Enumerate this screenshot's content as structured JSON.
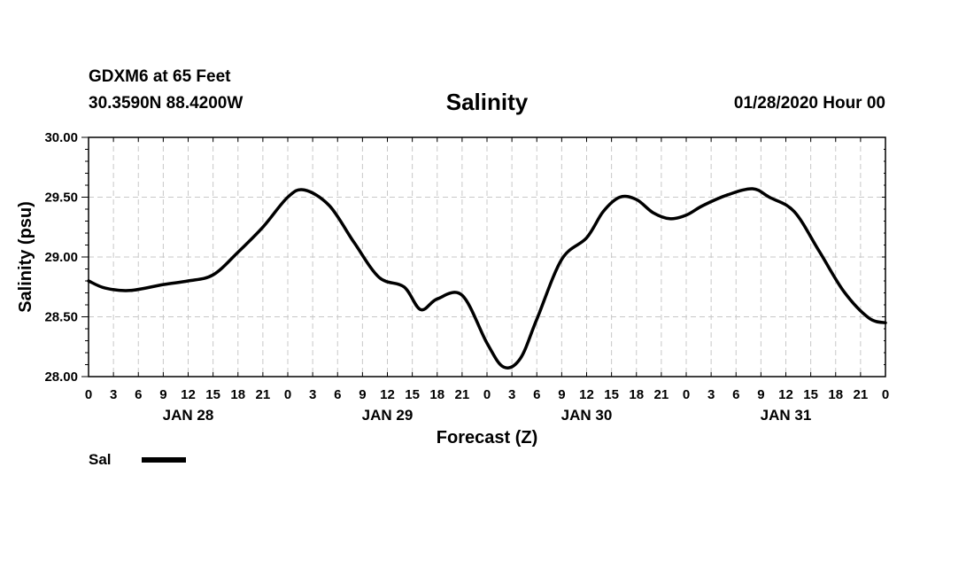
{
  "header": {
    "station": "GDXM6 at 65 Feet",
    "coords": "30.3590N 88.4200W",
    "title": "Salinity",
    "runtime": "01/28/2020 Hour 00"
  },
  "chart_data": {
    "type": "line",
    "title": "Salinity",
    "xlabel": "Forecast (Z)",
    "ylabel": "Salinity (psu)",
    "ylim": [
      28.0,
      30.0
    ],
    "yticks": [
      "28.00",
      "28.50",
      "29.00",
      "29.50",
      "30.00"
    ],
    "xlim_hours": [
      0,
      96
    ],
    "xtick_labels": [
      "0",
      "3",
      "6",
      "9",
      "12",
      "15",
      "18",
      "21",
      "0",
      "3",
      "6",
      "9",
      "12",
      "15",
      "18",
      "21",
      "0",
      "3",
      "6",
      "9",
      "12",
      "15",
      "18",
      "21",
      "0",
      "3",
      "6",
      "9",
      "12",
      "15",
      "18",
      "21",
      "0"
    ],
    "date_labels": [
      "JAN 28",
      "JAN 29",
      "JAN 30",
      "JAN 31"
    ],
    "grid": true,
    "legend_position": "bottom-left",
    "series": [
      {
        "name": "Sal",
        "color": "#000000",
        "x_hours": [
          0,
          2,
          5,
          9,
          12,
          15,
          18,
          21,
          24,
          26,
          29,
          32,
          35,
          38,
          40,
          42,
          45,
          48,
          50,
          52,
          54,
          57,
          60,
          62,
          64,
          66,
          68,
          70,
          72,
          74,
          77,
          80,
          82,
          85,
          88,
          91,
          94,
          96
        ],
        "values": [
          28.8,
          28.74,
          28.72,
          28.77,
          28.8,
          28.85,
          29.04,
          29.25,
          29.5,
          29.56,
          29.43,
          29.12,
          28.83,
          28.75,
          28.56,
          28.65,
          28.68,
          28.28,
          28.08,
          28.15,
          28.48,
          28.98,
          29.16,
          29.38,
          29.5,
          29.48,
          29.37,
          29.32,
          29.35,
          29.43,
          29.52,
          29.57,
          29.5,
          29.38,
          29.05,
          28.71,
          28.49,
          28.45
        ]
      }
    ]
  }
}
